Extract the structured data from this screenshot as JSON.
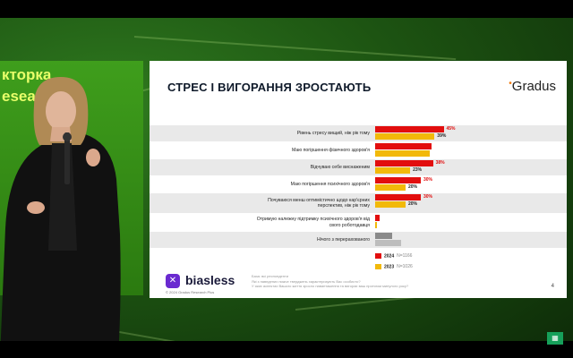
{
  "stage": {
    "side_screen_lines": [
      "кторка",
      "esearc"
    ]
  },
  "slide": {
    "title": "СТРЕС І ВИГОРАННЯ ЗРОСТАЮТЬ",
    "brand": "Gradus",
    "brand_dot": "•",
    "page_number": "4",
    "footer_brand": "biasless",
    "footer_copyright": "© 2024 Gradus Research Plus",
    "footer_notes": [
      "База: всі респонденти",
      "Які з наведених нижче тверджень характеризують Вас особисто?",
      "У яких аспектах Вашого життя зросло навантаження та вигорає ваш протягом минулого року?"
    ]
  },
  "chart_data": {
    "type": "bar",
    "orientation": "horizontal",
    "categories": [
      "Рівень стресу вищий, ніж рік тому",
      "Маю погіршення фізичного здоров'я",
      "Відчуваю себе виснаженим",
      "Маю погіршення психічного здоров'я",
      "Почуваюся менш оптимістично щодо кар'єрних перспектив, ніж рік тому",
      "Отримую належну підтримку психічного здоров'я від свого роботодавця",
      "Нічого з перерахованого"
    ],
    "series": [
      {
        "name": "2024",
        "sample": "N=1166",
        "color": "#e20e0e",
        "values": [
          45,
          37,
          38,
          30,
          30,
          3,
          11
        ],
        "labels": [
          "45%",
          "",
          "38%",
          "30%",
          "30%",
          "",
          ""
        ]
      },
      {
        "name": "2023",
        "sample": "N=1026",
        "color": "#f2b90a",
        "values": [
          39,
          36,
          23,
          20,
          20,
          1,
          17
        ],
        "labels": [
          "39%",
          "",
          "23%",
          "20%",
          "20%",
          "",
          ""
        ]
      }
    ],
    "highlight_colors": {
      "last_row_2024": "#8a8a8a",
      "last_row_2023": "#bdbdbd"
    },
    "xlim": [
      0,
      100
    ],
    "legend_position": "bottom"
  }
}
